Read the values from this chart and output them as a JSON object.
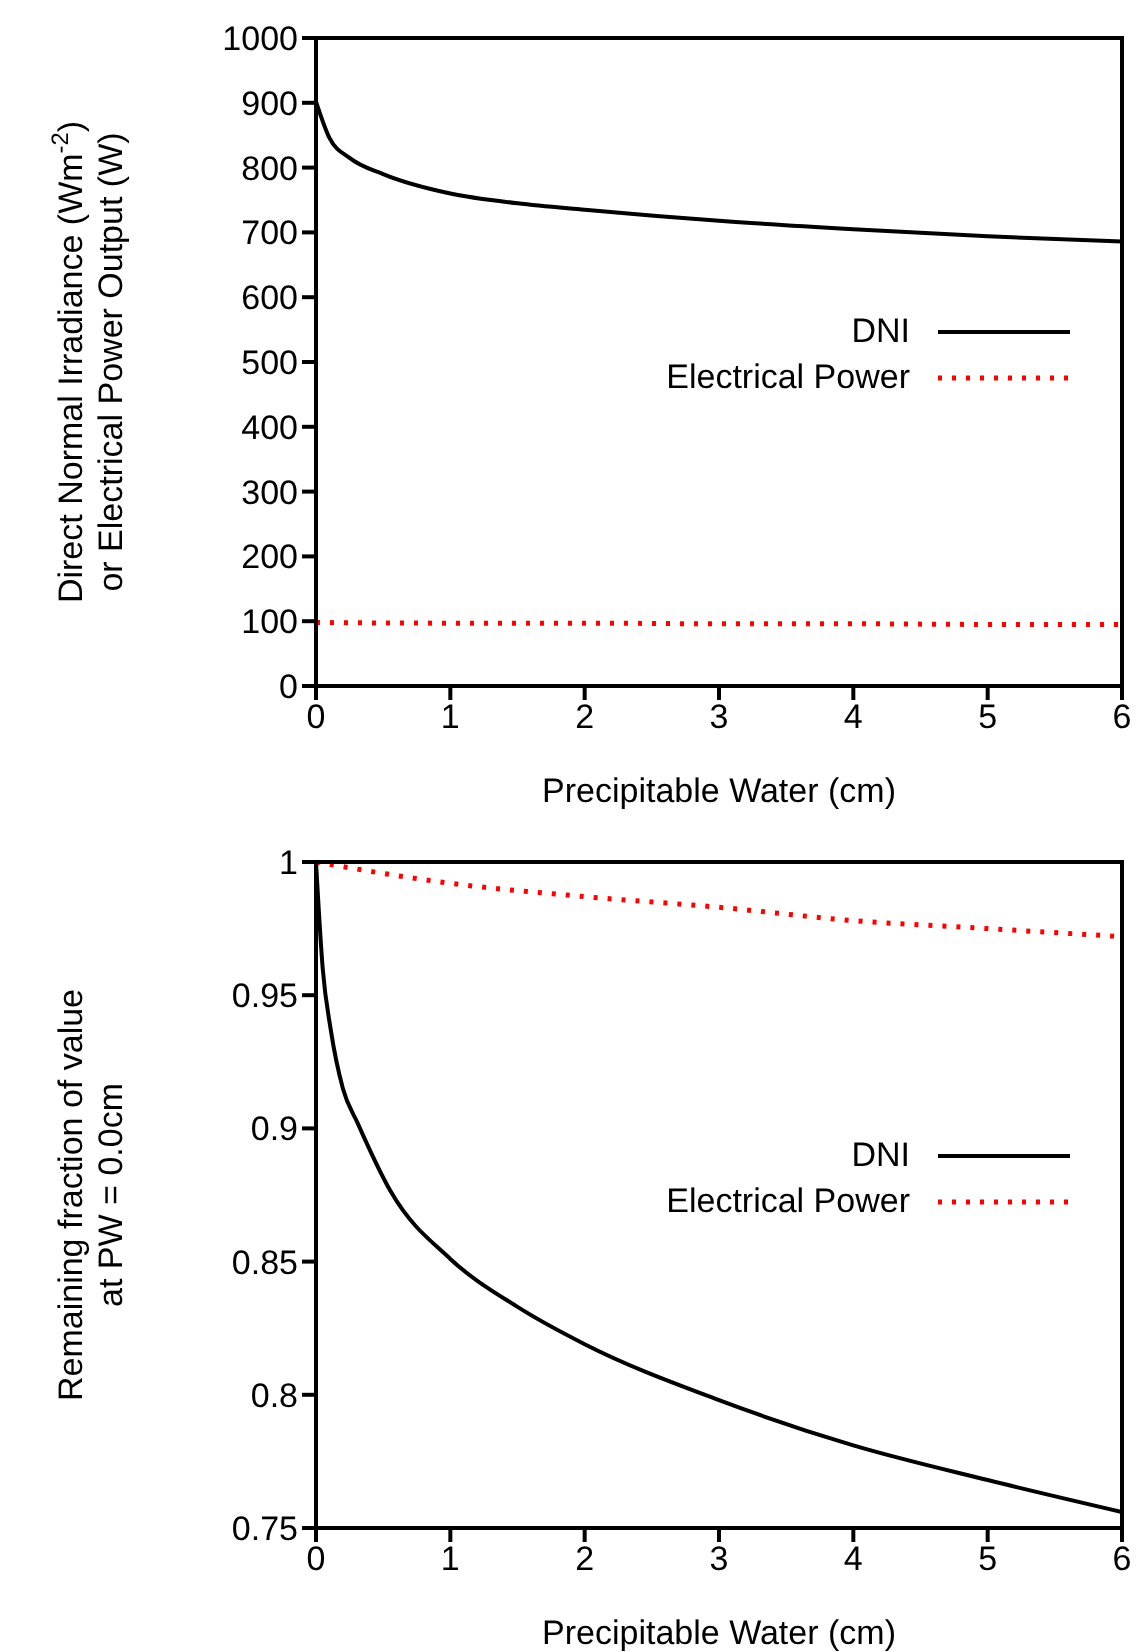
{
  "chart_data": [
    {
      "type": "line",
      "xlabel": "Precipitable Water (cm)",
      "ylabel": "Direct Normal Irradiance (Wm$^{-2}$)\nor Electrical Power Output (W)",
      "xlim": [
        0,
        6
      ],
      "xticks": [
        0,
        1,
        2,
        3,
        4,
        5,
        6
      ],
      "ylim": [
        0,
        1000
      ],
      "yticks": [
        0,
        100,
        200,
        300,
        400,
        500,
        600,
        700,
        800,
        900,
        1000
      ],
      "legend": "right",
      "marker": "none",
      "series": [
        {
          "name": "DNI",
          "color": "#000000",
          "line_style": "solid",
          "x": [
            0,
            0.1,
            0.25,
            0.5,
            1,
            1.5,
            2,
            3,
            4,
            5,
            6
          ],
          "values": [
            902,
            846,
            815,
            790,
            760,
            745,
            735,
            718,
            705,
            694,
            686
          ]
        },
        {
          "name": "Electrical Power",
          "color": "#ff0000",
          "line_style": "dotted",
          "x": [
            0,
            1,
            2,
            3,
            4,
            5,
            6
          ],
          "values": [
            98,
            97,
            97,
            96,
            96,
            95,
            95
          ]
        }
      ]
    },
    {
      "type": "line",
      "xlabel": "Precipitable Water (cm)",
      "ylabel": "Remaining fraction of value\nat PW = 0.0cm",
      "xlim": [
        0,
        6
      ],
      "xticks": [
        0,
        1,
        2,
        3,
        4,
        5,
        6
      ],
      "ylim": [
        0.75,
        1
      ],
      "yticks": [
        0.75,
        0.8,
        0.85,
        0.9,
        0.95,
        1
      ],
      "legend": "right",
      "marker": "none",
      "series": [
        {
          "name": "DNI",
          "color": "#000000",
          "line_style": "solid",
          "x": [
            0,
            0.05,
            0.11,
            0.2,
            0.31,
            0.56,
            1,
            1.5,
            2,
            3,
            4,
            5,
            6
          ],
          "values": [
            1,
            0.96,
            0.937,
            0.915,
            0.902,
            0.876,
            0.851,
            0.833,
            0.819,
            0.798,
            0.781,
            0.768,
            0.756
          ]
        },
        {
          "name": "Electrical Power",
          "color": "#ff0000",
          "line_style": "dotted",
          "x": [
            0,
            1,
            2,
            3,
            4,
            5,
            6
          ],
          "values": [
            1,
            0.992,
            0.987,
            0.983,
            0.978,
            0.975,
            0.972
          ]
        }
      ]
    }
  ]
}
